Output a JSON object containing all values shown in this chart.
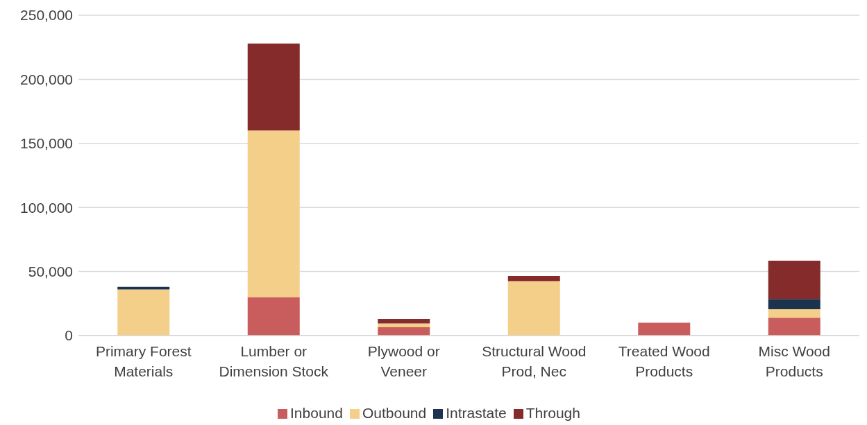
{
  "chart_data": {
    "type": "bar",
    "stacked": true,
    "categories": [
      "Primary Forest Materials",
      "Lumber or Dimension Stock",
      "Plywood or Veneer",
      "Structural Wood Prod, Nec",
      "Treated Wood Products",
      "Misc Wood Products"
    ],
    "series": [
      {
        "name": "Inbound",
        "color": "#c95c5c",
        "values": [
          0,
          30000,
          6500,
          0,
          10000,
          14000
        ]
      },
      {
        "name": "Outbound",
        "color": "#f4cf8a",
        "values": [
          36000,
          130000,
          3000,
          42500,
          0,
          6500
        ]
      },
      {
        "name": "Intrastate",
        "color": "#1c3350",
        "values": [
          2000,
          0,
          0,
          0,
          0,
          8000
        ]
      },
      {
        "name": "Through",
        "color": "#852b2b",
        "values": [
          0,
          68000,
          3500,
          4000,
          0,
          30000
        ]
      }
    ],
    "ylim": [
      0,
      250000
    ],
    "yticks": [
      0,
      {
        "value": 50000,
        "label": "50,000"
      },
      {
        "value": 100000,
        "label": "100,000"
      },
      {
        "value": 150000,
        "label": "150,000"
      },
      {
        "value": 200000,
        "label": "200,000"
      },
      {
        "value": 250000,
        "label": "250,000"
      }
    ],
    "grid": "y",
    "legend": "bottom"
  }
}
